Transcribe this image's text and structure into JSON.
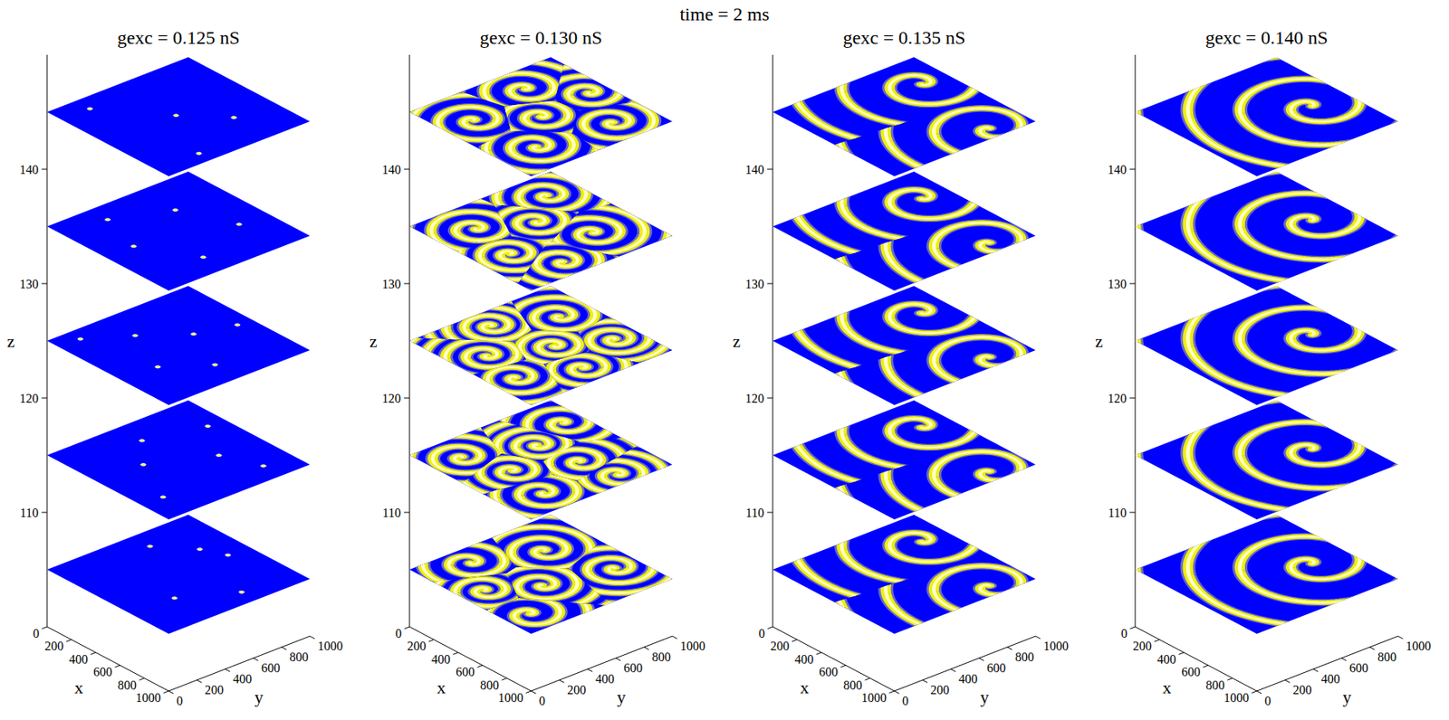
{
  "chart_data": {
    "type": "slice-stack",
    "title": "time = 2 ms",
    "x_label": "x",
    "y_label": "y",
    "z_label": "z",
    "xlim": [
      0,
      1000
    ],
    "ylim": [
      0,
      1000
    ],
    "zlim": [
      100,
      150
    ],
    "xticks": [
      0,
      200,
      400,
      600,
      800,
      1000
    ],
    "yticks": [
      0,
      200,
      400,
      600,
      800,
      1000
    ],
    "zticks": [
      110,
      120,
      130,
      140
    ],
    "panels": [
      {
        "title": "gexc = 0.125 nS",
        "slices": [
          {
            "z": 105,
            "spots": [
              {
                "x": 350,
                "y": 780
              },
              {
                "x": 500,
                "y": 850
              },
              {
                "x": 150,
                "y": 600
              },
              {
                "x": 700,
                "y": 300
              },
              {
                "x": 880,
                "y": 620
              }
            ]
          },
          {
            "z": 115,
            "spots": [
              {
                "x": 200,
                "y": 500
              },
              {
                "x": 420,
                "y": 320
              },
              {
                "x": 600,
                "y": 700
              },
              {
                "x": 780,
                "y": 150
              },
              {
                "x": 300,
                "y": 880
              },
              {
                "x": 850,
                "y": 800
              }
            ]
          },
          {
            "z": 125,
            "spots": [
              {
                "x": 100,
                "y": 150
              },
              {
                "x": 260,
                "y": 400
              },
              {
                "x": 450,
                "y": 650
              },
              {
                "x": 620,
                "y": 250
              },
              {
                "x": 800,
                "y": 500
              },
              {
                "x": 520,
                "y": 900
              }
            ]
          },
          {
            "z": 135,
            "spots": [
              {
                "x": 150,
                "y": 300
              },
              {
                "x": 300,
                "y": 650
              },
              {
                "x": 480,
                "y": 200
              },
              {
                "x": 650,
                "y": 800
              },
              {
                "x": 820,
                "y": 400
              }
            ]
          },
          {
            "z": 145,
            "spots": [
              {
                "x": 120,
                "y": 200
              },
              {
                "x": 480,
                "y": 500
              },
              {
                "x": 700,
                "y": 720
              },
              {
                "x": 900,
                "y": 300
              }
            ]
          }
        ]
      },
      {
        "title": "gexc = 0.130 nS",
        "slices": [
          {
            "z": 105,
            "spirals": [
              {
                "x": 820,
                "y": 150,
                "wavelength": 150,
                "phase": 30
              },
              {
                "x": 600,
                "y": 420,
                "wavelength": 120,
                "phase": 200
              },
              {
                "x": 300,
                "y": 700,
                "wavelength": 130,
                "phase": 90
              },
              {
                "x": 150,
                "y": 300,
                "wavelength": 140,
                "phase": 300
              },
              {
                "x": 700,
                "y": 850,
                "wavelength": 120,
                "phase": 150
              },
              {
                "x": 450,
                "y": 150,
                "wavelength": 110,
                "phase": 60
              }
            ]
          },
          {
            "z": 115,
            "spirals": [
              {
                "x": 200,
                "y": 200,
                "wavelength": 120,
                "phase": 120
              },
              {
                "x": 500,
                "y": 300,
                "wavelength": 110,
                "phase": 10
              },
              {
                "x": 800,
                "y": 250,
                "wavelength": 130,
                "phase": 250
              },
              {
                "x": 350,
                "y": 600,
                "wavelength": 100,
                "phase": 180
              },
              {
                "x": 650,
                "y": 650,
                "wavelength": 120,
                "phase": 80
              },
              {
                "x": 900,
                "y": 700,
                "wavelength": 110,
                "phase": 320
              },
              {
                "x": 250,
                "y": 880,
                "wavelength": 130,
                "phase": 40
              }
            ]
          },
          {
            "z": 125,
            "spirals": [
              {
                "x": 150,
                "y": 450,
                "wavelength": 100,
                "phase": 70
              },
              {
                "x": 400,
                "y": 200,
                "wavelength": 110,
                "phase": 230
              },
              {
                "x": 700,
                "y": 150,
                "wavelength": 120,
                "phase": 140
              },
              {
                "x": 550,
                "y": 550,
                "wavelength": 100,
                "phase": 290
              },
              {
                "x": 850,
                "y": 500,
                "wavelength": 110,
                "phase": 20
              },
              {
                "x": 300,
                "y": 800,
                "wavelength": 120,
                "phase": 190
              },
              {
                "x": 700,
                "y": 850,
                "wavelength": 100,
                "phase": 100
              }
            ]
          },
          {
            "z": 135,
            "spirals": [
              {
                "x": 250,
                "y": 250,
                "wavelength": 130,
                "phase": 300
              },
              {
                "x": 600,
                "y": 200,
                "wavelength": 110,
                "phase": 50
              },
              {
                "x": 850,
                "y": 350,
                "wavelength": 120,
                "phase": 170
              },
              {
                "x": 400,
                "y": 550,
                "wavelength": 110,
                "phase": 260
              },
              {
                "x": 700,
                "y": 700,
                "wavelength": 130,
                "phase": 10
              },
              {
                "x": 200,
                "y": 800,
                "wavelength": 120,
                "phase": 140
              }
            ]
          },
          {
            "z": 145,
            "spirals": [
              {
                "x": 300,
                "y": 200,
                "wavelength": 140,
                "phase": 90
              },
              {
                "x": 750,
                "y": 250,
                "wavelength": 130,
                "phase": 210
              },
              {
                "x": 500,
                "y": 500,
                "wavelength": 120,
                "phase": 330
              },
              {
                "x": 200,
                "y": 650,
                "wavelength": 140,
                "phase": 20
              },
              {
                "x": 800,
                "y": 750,
                "wavelength": 130,
                "phase": 160
              },
              {
                "x": 450,
                "y": 880,
                "wavelength": 120,
                "phase": 270
              }
            ]
          }
        ]
      },
      {
        "title": "gexc = 0.135 nS",
        "slices": [
          {
            "z": 105,
            "spirals": [
              {
                "x": 270,
                "y": 820,
                "wavelength": 260,
                "phase": 0
              },
              {
                "x": 900,
                "y": 760,
                "wavelength": 260,
                "phase": 180
              }
            ]
          },
          {
            "z": 115,
            "spirals": [
              {
                "x": 270,
                "y": 820,
                "wavelength": 260,
                "phase": 0
              },
              {
                "x": 900,
                "y": 760,
                "wavelength": 260,
                "phase": 180
              }
            ]
          },
          {
            "z": 125,
            "spirals": [
              {
                "x": 270,
                "y": 820,
                "wavelength": 260,
                "phase": 0
              },
              {
                "x": 900,
                "y": 760,
                "wavelength": 260,
                "phase": 180
              }
            ]
          },
          {
            "z": 135,
            "spirals": [
              {
                "x": 270,
                "y": 820,
                "wavelength": 260,
                "phase": 0
              },
              {
                "x": 900,
                "y": 760,
                "wavelength": 260,
                "phase": 180
              }
            ]
          },
          {
            "z": 145,
            "spirals": [
              {
                "x": 270,
                "y": 820,
                "wavelength": 260,
                "phase": 0
              },
              {
                "x": 900,
                "y": 760,
                "wavelength": 260,
                "phase": 180
              }
            ]
          }
        ]
      },
      {
        "title": "gexc = 0.140 nS",
        "slices": [
          {
            "z": 105,
            "spirals": [
              {
                "x": 565,
                "y": 770,
                "wavelength": 280,
                "phase": 90
              }
            ]
          },
          {
            "z": 115,
            "spirals": [
              {
                "x": 565,
                "y": 770,
                "wavelength": 280,
                "phase": 90
              }
            ]
          },
          {
            "z": 125,
            "spirals": [
              {
                "x": 565,
                "y": 770,
                "wavelength": 280,
                "phase": 90
              }
            ]
          },
          {
            "z": 135,
            "spirals": [
              {
                "x": 565,
                "y": 770,
                "wavelength": 280,
                "phase": 90
              }
            ]
          },
          {
            "z": 145,
            "spirals": [
              {
                "x": 565,
                "y": 770,
                "wavelength": 280,
                "phase": 90
              }
            ]
          }
        ]
      }
    ]
  }
}
